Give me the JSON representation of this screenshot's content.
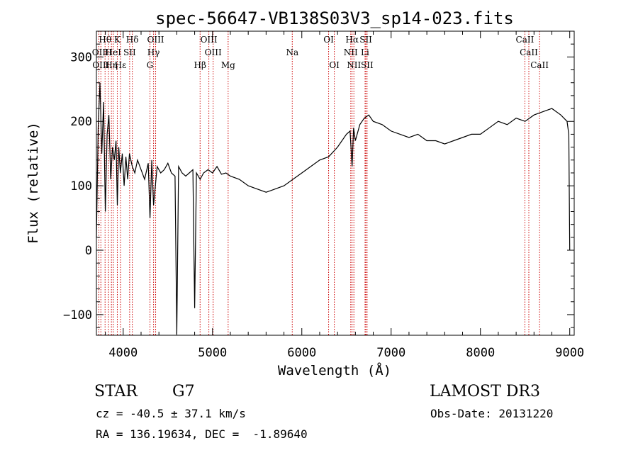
{
  "chart_data": {
    "type": "line",
    "title": "spec-56647-VB138S03V3_sp14-023.fits",
    "xlabel": "Wavelength (Å)",
    "ylabel": "Flux (relative)",
    "xlim": [
      3700,
      9050
    ],
    "ylim": [
      -132,
      340
    ],
    "xticks": [
      4000,
      5000,
      6000,
      7000,
      8000,
      9000
    ],
    "xtick_labels": [
      "4000",
      "5000",
      "6000",
      "7000",
      "8000",
      "9000"
    ],
    "yticks": [
      -100,
      0,
      100,
      200,
      300
    ],
    "ytick_labels": [
      "−100",
      "0",
      "100",
      "200",
      "300"
    ],
    "line_color": "#000000",
    "marker_color": "#cc0000",
    "spectrum": {
      "x": [
        3700,
        3720,
        3740,
        3760,
        3780,
        3800,
        3820,
        3840,
        3860,
        3880,
        3900,
        3920,
        3934,
        3950,
        3968,
        3990,
        4010,
        4030,
        4050,
        4070,
        4102,
        4130,
        4160,
        4200,
        4240,
        4280,
        4300,
        4320,
        4340,
        4380,
        4420,
        4460,
        4500,
        4540,
        4580,
        4600,
        4620,
        4660,
        4700,
        4740,
        4780,
        4800,
        4820,
        4861,
        4900,
        4950,
        5000,
        5050,
        5100,
        5150,
        5200,
        5300,
        5400,
        5500,
        5600,
        5700,
        5800,
        5900,
        6000,
        6100,
        6200,
        6300,
        6400,
        6500,
        6540,
        6563,
        6580,
        6600,
        6650,
        6700,
        6750,
        6800,
        6900,
        7000,
        7100,
        7200,
        7300,
        7400,
        7500,
        7600,
        7700,
        7800,
        7900,
        8000,
        8100,
        8200,
        8300,
        8400,
        8500,
        8600,
        8700,
        8800,
        8900,
        8970,
        8990,
        9000
      ],
      "y": [
        20,
        190,
        260,
        150,
        230,
        60,
        180,
        210,
        110,
        160,
        140,
        170,
        70,
        160,
        120,
        150,
        100,
        145,
        110,
        150,
        130,
        120,
        140,
        125,
        110,
        135,
        50,
        140,
        70,
        130,
        120,
        125,
        135,
        120,
        115,
        -130,
        130,
        120,
        115,
        120,
        125,
        -90,
        120,
        110,
        120,
        125,
        120,
        130,
        118,
        120,
        115,
        110,
        100,
        95,
        90,
        95,
        100,
        110,
        120,
        130,
        140,
        145,
        160,
        180,
        185,
        130,
        190,
        170,
        195,
        205,
        210,
        200,
        195,
        185,
        180,
        175,
        180,
        170,
        170,
        165,
        170,
        175,
        180,
        180,
        190,
        200,
        195,
        205,
        200,
        210,
        215,
        220,
        210,
        200,
        180,
        0
      ]
    },
    "lines": [
      {
        "label": "Hθ",
        "x": 3797,
        "row": 0
      },
      {
        "label": "K",
        "x": 3934,
        "row": 0
      },
      {
        "label": "Hδ",
        "x": 4102,
        "row": 0
      },
      {
        "label": "OIII",
        "x": 4363,
        "row": 0
      },
      {
        "label": "OIII",
        "x": 4959,
        "row": 0
      },
      {
        "label": "OI",
        "x": 6300,
        "row": 0
      },
      {
        "label": "Hα",
        "x": 6563,
        "row": 0
      },
      {
        "label": "SII",
        "x": 6717,
        "row": 0
      },
      {
        "label": "CaII",
        "x": 8498,
        "row": 0
      },
      {
        "label": "OII",
        "x": 3727,
        "row": 1
      },
      {
        "label": "H",
        "x": 3835,
        "row": 1
      },
      {
        "label": "HeI",
        "x": 3889,
        "row": 1
      },
      {
        "label": "SII",
        "x": 4072,
        "row": 1
      },
      {
        "label": "Hγ",
        "x": 4340,
        "row": 1
      },
      {
        "label": "OIII",
        "x": 5007,
        "row": 1
      },
      {
        "label": "Na",
        "x": 5893,
        "row": 1
      },
      {
        "label": "NII",
        "x": 6548,
        "row": 1
      },
      {
        "label": "Li",
        "x": 6708,
        "row": 1
      },
      {
        "label": "CaII",
        "x": 8542,
        "row": 1
      },
      {
        "label": "OIII",
        "x": 3750,
        "row": 2
      },
      {
        "label": "Hε",
        "x": 3970,
        "row": 2
      },
      {
        "label": "Hη",
        "x": 3868,
        "row": 2
      },
      {
        "label": "G",
        "x": 4300,
        "row": 2
      },
      {
        "label": "Hβ",
        "x": 4861,
        "row": 2
      },
      {
        "label": "Mg",
        "x": 5175,
        "row": 2
      },
      {
        "label": "OI",
        "x": 6364,
        "row": 2
      },
      {
        "label": "NII",
        "x": 6583,
        "row": 2
      },
      {
        "label": "SII",
        "x": 6731,
        "row": 2
      },
      {
        "label": "CaII",
        "x": 8662,
        "row": 2
      }
    ]
  },
  "info": {
    "class": "STAR",
    "subclass": "G7",
    "survey": "LAMOST DR3",
    "redshift": "cz = -40.5 ± 37.1 km/s",
    "obsdate": "Obs-Date: 20131220",
    "coords": "RA = 136.19634, DEC =  -1.89640"
  }
}
